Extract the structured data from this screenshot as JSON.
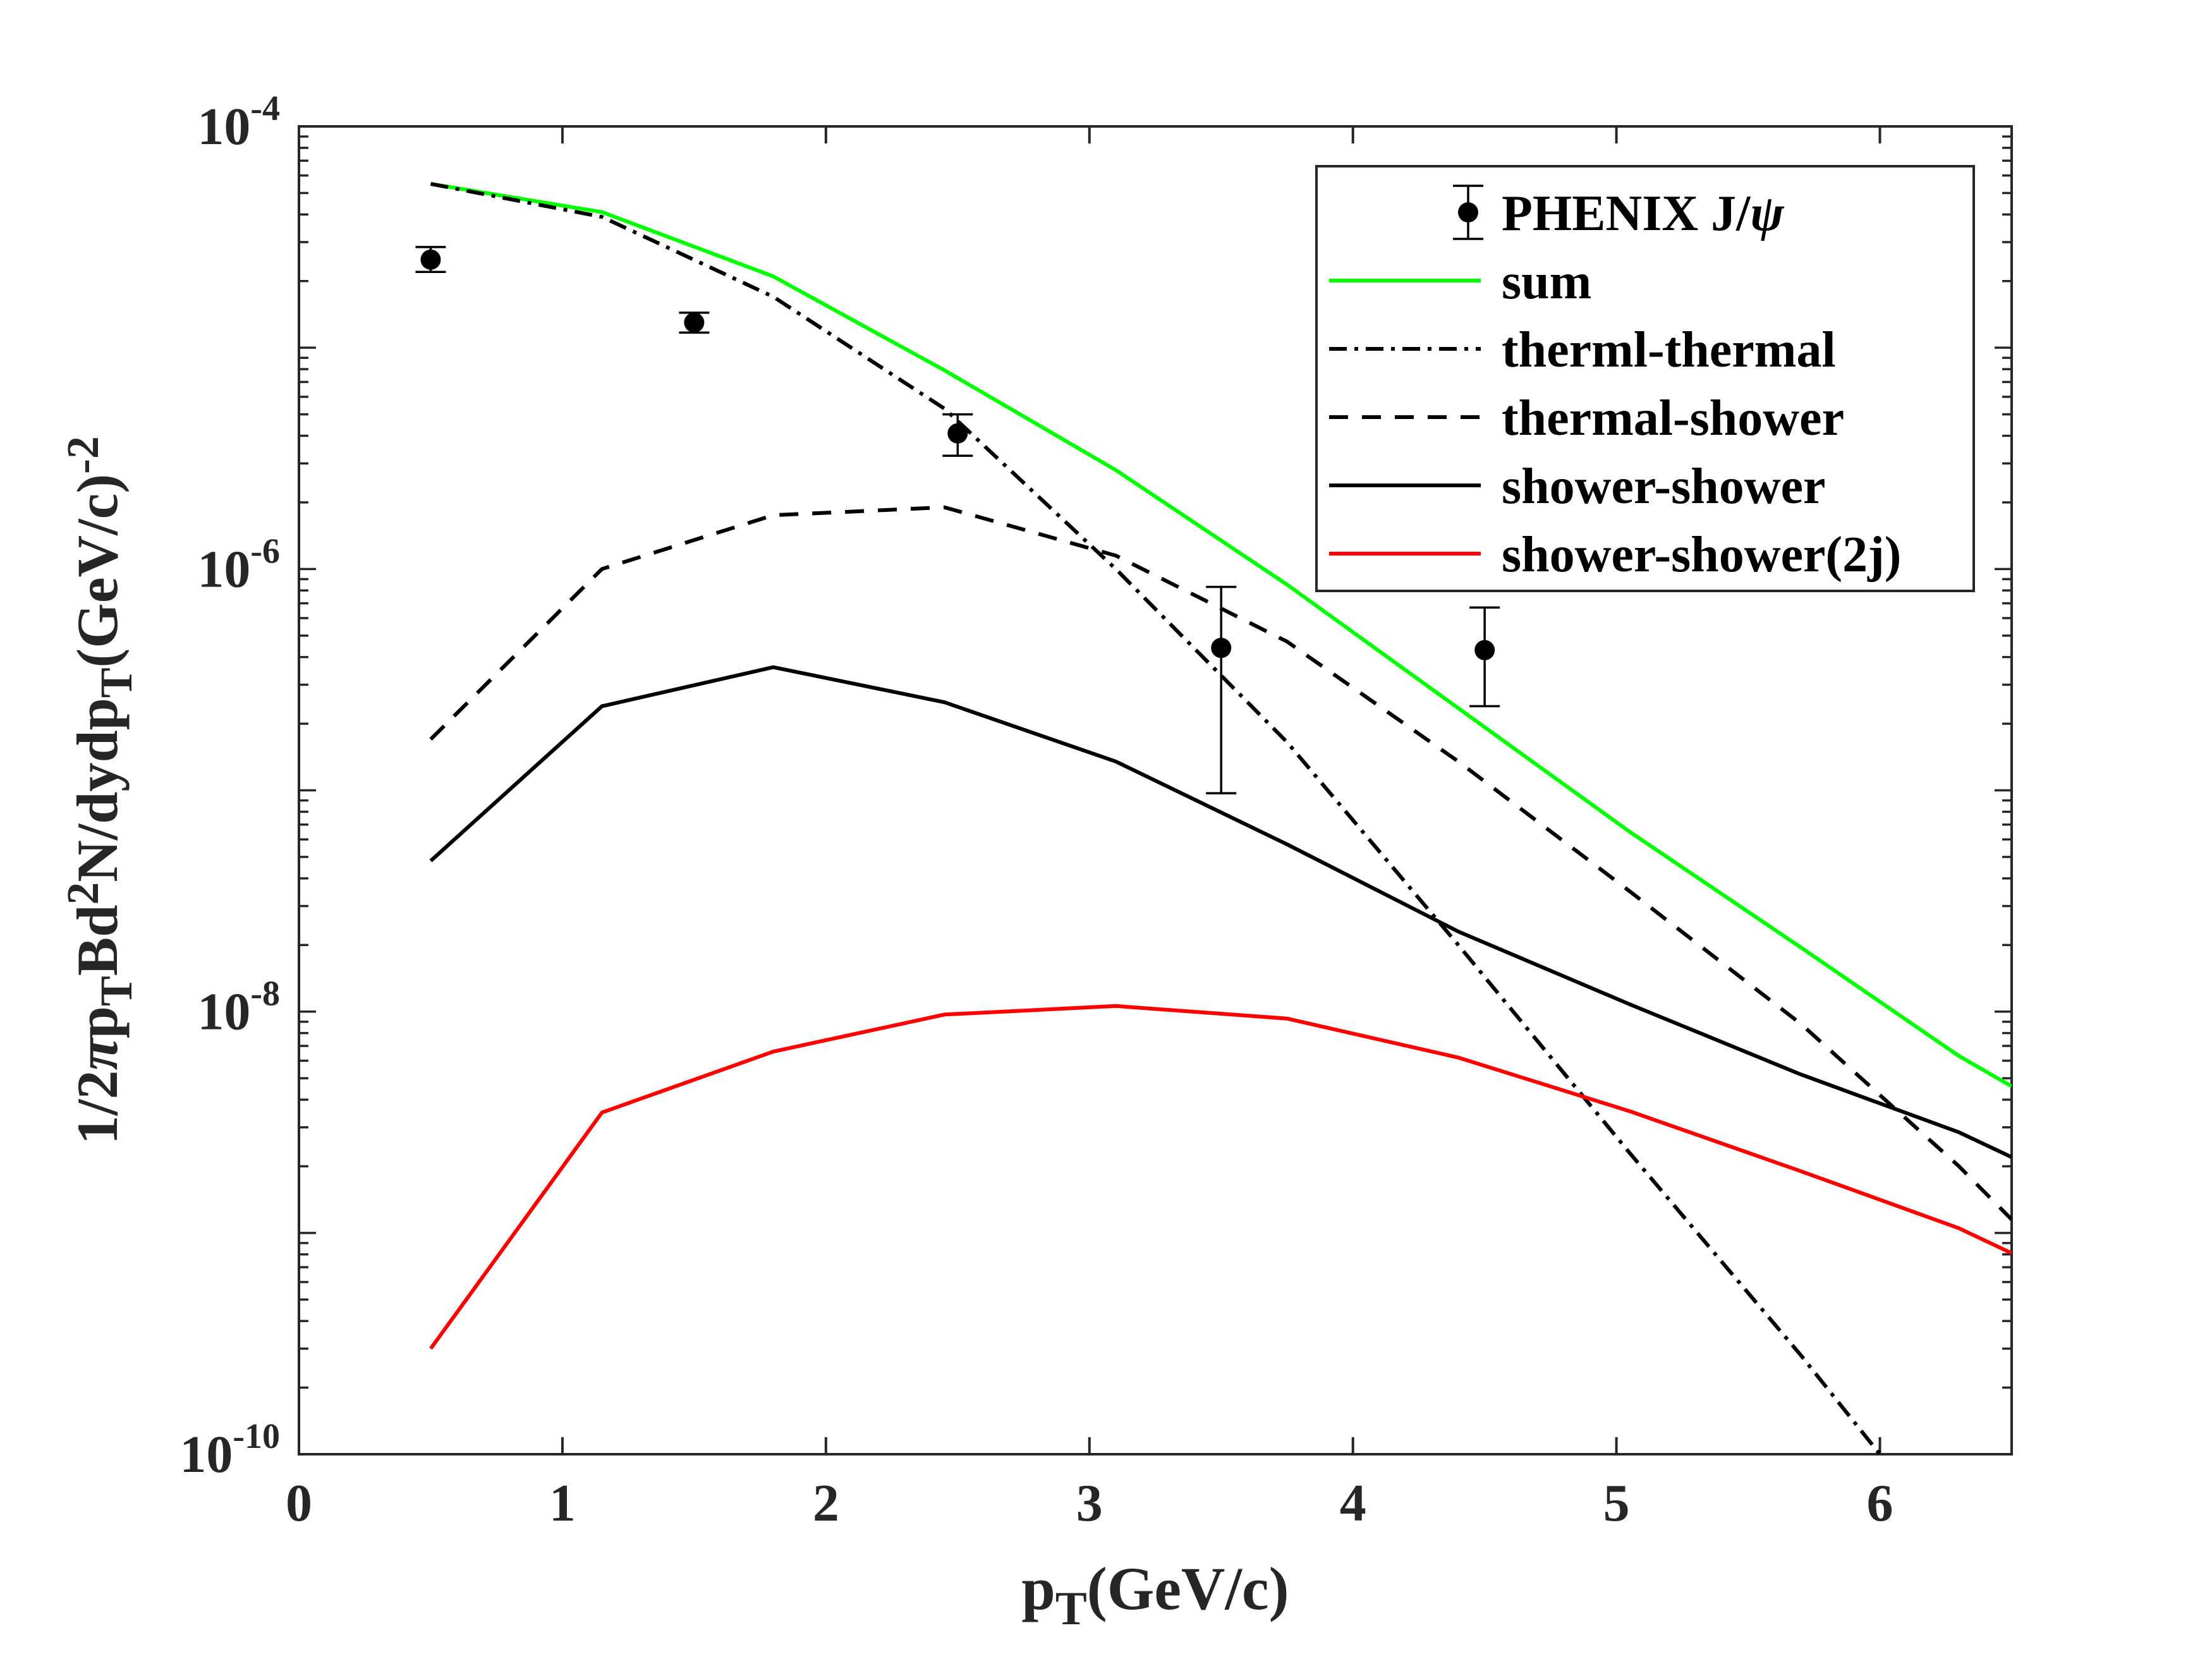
{
  "chart_data": {
    "type": "line",
    "xlabel": {
      "main": "p",
      "sub": "T",
      "rest": "(GeV/c)"
    },
    "ylabel": {
      "parts": [
        {
          "t": "1/2",
          "s": "n"
        },
        {
          "t": "π",
          "s": "i"
        },
        {
          "t": "p",
          "s": "n"
        },
        {
          "t": "T",
          "s": "sub"
        },
        {
          "t": "Bd",
          "s": "n"
        },
        {
          "t": "2",
          "s": "sup"
        },
        {
          "t": "N/dydp",
          "s": "n"
        },
        {
          "t": "T",
          "s": "sub"
        },
        {
          "t": "(GeV/c)",
          "s": "n"
        },
        {
          "t": "-2",
          "s": "sup"
        }
      ]
    },
    "xlim": [
      0,
      6.5
    ],
    "ylim": [
      1e-10,
      0.0001
    ],
    "yscale": "log",
    "grid": false,
    "legend_position": "top-right",
    "x_ticks": [
      "0",
      "1",
      "2",
      "3",
      "4",
      "5",
      "6"
    ],
    "y_ticks": [
      {
        "base": "10",
        "exp": "-4",
        "value": 0.0001
      },
      {
        "base": "10",
        "exp": "-6",
        "value": 1e-06
      },
      {
        "base": "10",
        "exp": "-8",
        "value": 1e-08
      },
      {
        "base": "10",
        "exp": "-10",
        "value": 1e-10
      }
    ],
    "data_points": {
      "name": "PHENIX J/ψ",
      "name_parts": [
        {
          "t": "PHENIX J/",
          "s": "n"
        },
        {
          "t": "ψ",
          "s": "i"
        }
      ],
      "color": "#000000",
      "points": [
        {
          "x": 0.5,
          "y": 2.5e-05,
          "ylo": 2.2e-05,
          "yhi": 2.85e-05
        },
        {
          "x": 1.5,
          "y": 1.3e-05,
          "ylo": 1.17e-05,
          "yhi": 1.44e-05
        },
        {
          "x": 2.5,
          "y": 4.1e-06,
          "ylo": 3.25e-06,
          "yhi": 5e-06
        },
        {
          "x": 3.5,
          "y": 4.4e-07,
          "ylo": 9.7e-08,
          "yhi": 8.3e-07
        },
        {
          "x": 4.5,
          "y": 4.3e-07,
          "ylo": 2.4e-07,
          "yhi": 6.7e-07
        }
      ]
    },
    "series": [
      {
        "name": "sum",
        "color": "#00ff00",
        "dash": "solid",
        "x": [
          0.5,
          1.15,
          1.8,
          2.45,
          3.1,
          3.75,
          4.4,
          5.05,
          5.7,
          6.3,
          6.5
        ],
        "y": [
          5.5e-05,
          4.1e-05,
          2.1e-05,
          7.9e-06,
          2.8e-06,
          8.5e-07,
          2.35e-07,
          6.5e-08,
          1.95e-08,
          6.3e-09,
          4.6e-09
        ]
      },
      {
        "name": "therml-thermal",
        "color": "#000000",
        "dash": "dashdot",
        "x": [
          0.5,
          1.15,
          1.8,
          2.45,
          3.1,
          3.75,
          4.4,
          5.05,
          5.7,
          6.0
        ],
        "y": [
          5.5e-05,
          3.9e-05,
          1.7e-05,
          5.3e-06,
          1e-06,
          1.65e-07,
          2e-08,
          2.3e-09,
          2.8e-10,
          1e-10
        ]
      },
      {
        "name": "thermal-shower",
        "color": "#000000",
        "dash": "dashed",
        "x": [
          0.5,
          1.15,
          1.8,
          2.45,
          3.1,
          3.75,
          4.4,
          5.05,
          5.7,
          6.3,
          6.5
        ],
        "y": [
          1.7e-07,
          1e-06,
          1.75e-06,
          1.9e-06,
          1.15e-06,
          4.7e-07,
          1.35e-07,
          3.5e-08,
          8.8e-09,
          2e-09,
          1.15e-09
        ]
      },
      {
        "name": "shower-shower",
        "color": "#000000",
        "dash": "solid",
        "x": [
          0.5,
          1.15,
          1.8,
          2.45,
          3.1,
          3.75,
          4.4,
          5.05,
          5.7,
          6.3,
          6.5
        ],
        "y": [
          4.8e-08,
          2.4e-07,
          3.6e-07,
          2.5e-07,
          1.35e-07,
          5.7e-08,
          2.3e-08,
          1.08e-08,
          5.2e-09,
          2.85e-09,
          2.2e-09
        ]
      },
      {
        "name": "shower-shower(2j)",
        "color": "#ff0000",
        "dash": "solid",
        "x": [
          0.5,
          1.15,
          1.8,
          2.45,
          3.1,
          3.75,
          4.4,
          5.05,
          5.7,
          6.3,
          6.5
        ],
        "y": [
          3e-10,
          3.5e-09,
          6.6e-09,
          9.7e-09,
          1.06e-08,
          9.3e-09,
          6.2e-09,
          3.55e-09,
          1.9e-09,
          1.05e-09,
          8.1e-10
        ]
      }
    ]
  }
}
